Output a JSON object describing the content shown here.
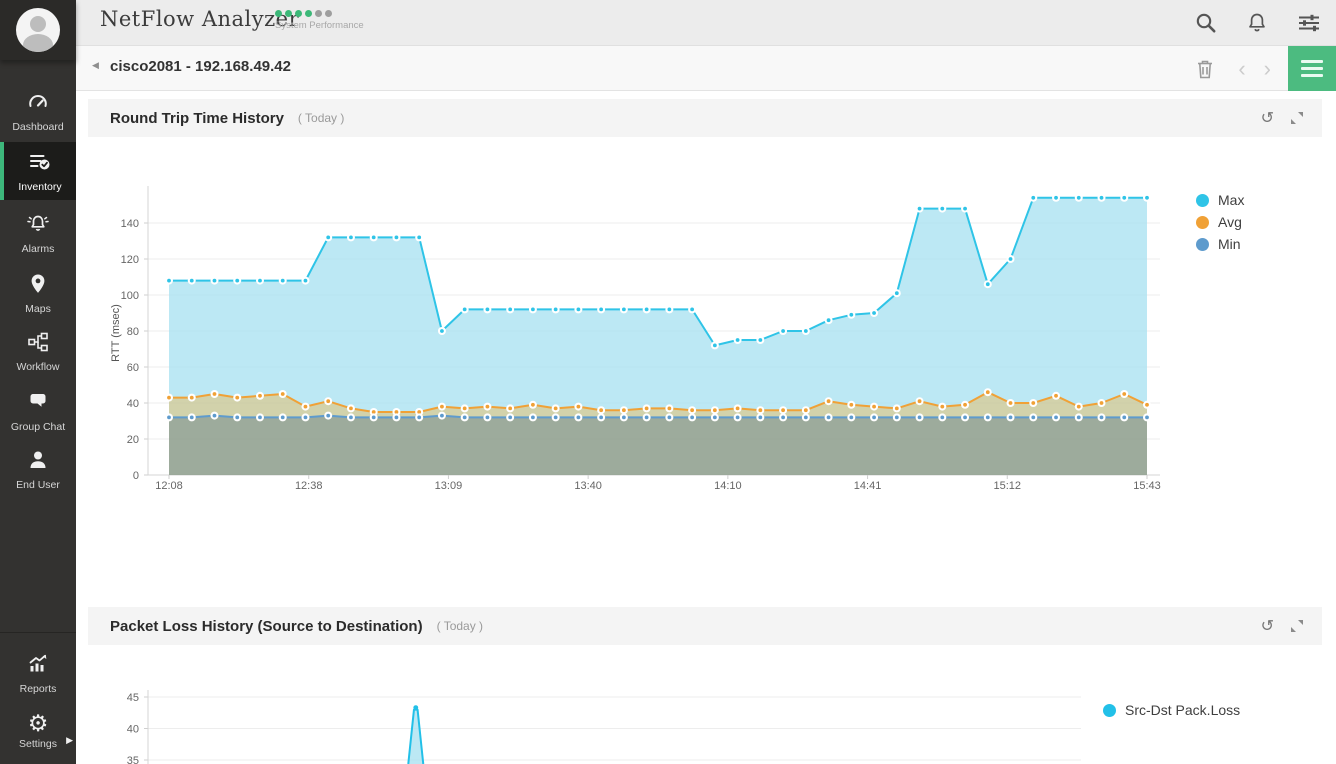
{
  "topbar": {
    "app_title": "NetFlow Analyzer",
    "subtitle": "System Performance",
    "dots": [
      "#3cb878",
      "#3cb878",
      "#3cb878",
      "#3cb878",
      "#9e9e9e",
      "#9e9e9e"
    ]
  },
  "breadcrumb": {
    "device_title": "cisco2081 - 192.168.49.42"
  },
  "sidebar": {
    "items": [
      {
        "label": "Dashboard",
        "icon": "gauge-icon",
        "selected": false
      },
      {
        "label": "Inventory",
        "icon": "inventory-icon",
        "selected": true
      },
      {
        "label": "Alarms",
        "icon": "alarm-bell-icon",
        "selected": false
      },
      {
        "label": "Maps",
        "icon": "map-pin-icon",
        "selected": false
      },
      {
        "label": "Workflow",
        "icon": "workflow-icon",
        "selected": false
      },
      {
        "label": "Group Chat",
        "icon": "chat-icon",
        "selected": false
      },
      {
        "label": "End User",
        "icon": "user-icon",
        "selected": false
      }
    ],
    "bottom_items": [
      {
        "label": "Reports",
        "icon": "reports-icon"
      },
      {
        "label": "Settings",
        "icon": "gear-icon",
        "has_submenu": true
      }
    ]
  },
  "panels": [
    {
      "title": "Round Trip Time History",
      "range_label": "( Today )"
    },
    {
      "title": "Packet Loss History (Source to Destination)",
      "range_label": "( Today )"
    }
  ],
  "chart_data": [
    {
      "type": "area",
      "title": "Round Trip Time History",
      "xlabel": "",
      "ylabel": "RTT (msec)",
      "y_ticks": [
        0,
        20,
        40,
        60,
        80,
        100,
        120,
        140
      ],
      "ylim": [
        0,
        160
      ],
      "x_ticks": [
        "12:08",
        "12:38",
        "13:09",
        "13:40",
        "14:10",
        "14:41",
        "15:12",
        "15:43"
      ],
      "sample_interval_minutes": 5,
      "grid": true,
      "legend_position": "right",
      "series": [
        {
          "name": "Max",
          "color": "#2fc4e7",
          "fill": "rgba(160,222,240,0.7)",
          "values": [
            108,
            108,
            108,
            108,
            108,
            108,
            108,
            132,
            132,
            132,
            132,
            132,
            80,
            92,
            92,
            92,
            92,
            92,
            92,
            92,
            92,
            92,
            92,
            92,
            72,
            75,
            75,
            80,
            80,
            86,
            89,
            90,
            101,
            148,
            148,
            148,
            106,
            120,
            154,
            154,
            154,
            154,
            154,
            154
          ]
        },
        {
          "name": "Avg",
          "color": "#f0a136",
          "fill": "rgba(231,187,98,0.5)",
          "values": [
            43,
            43,
            45,
            43,
            44,
            45,
            38,
            41,
            37,
            35,
            35,
            35,
            38,
            37,
            38,
            37,
            39,
            37,
            38,
            36,
            36,
            37,
            37,
            36,
            36,
            37,
            36,
            36,
            36,
            41,
            39,
            38,
            37,
            41,
            38,
            39,
            46,
            40,
            40,
            44,
            38,
            40,
            45,
            39
          ]
        },
        {
          "name": "Min",
          "color": "#5e9bcd",
          "fill": "rgba(93,125,138,0.45)",
          "values": [
            32,
            32,
            33,
            32,
            32,
            32,
            32,
            33,
            32,
            32,
            32,
            32,
            33,
            32,
            32,
            32,
            32,
            32,
            32,
            32,
            32,
            32,
            32,
            32,
            32,
            32,
            32,
            32,
            32,
            32,
            32,
            32,
            32,
            32,
            32,
            32,
            32,
            32,
            32,
            32,
            32,
            32,
            32,
            32
          ]
        }
      ]
    },
    {
      "type": "area",
      "title": "Packet Loss History (Source to Destination)",
      "xlabel": "",
      "ylabel": "",
      "y_ticks_visible": [
        45,
        40,
        35
      ],
      "grid": true,
      "legend_position": "right",
      "series": [
        {
          "name": "Src-Dst Pack.Loss",
          "color": "#22c0e8",
          "fill": "rgba(160,222,240,0.7)"
        }
      ],
      "peak": {
        "value": 43,
        "x_fraction": 0.287
      }
    }
  ],
  "colors": {
    "accent_green": "#4cbb80",
    "sidebar_selected_green": "#3db77b",
    "max_line": "#2fc4e7",
    "avg_line": "#f0a136",
    "min_line": "#5e9bcd",
    "packet_loss_line": "#22c0e8"
  }
}
